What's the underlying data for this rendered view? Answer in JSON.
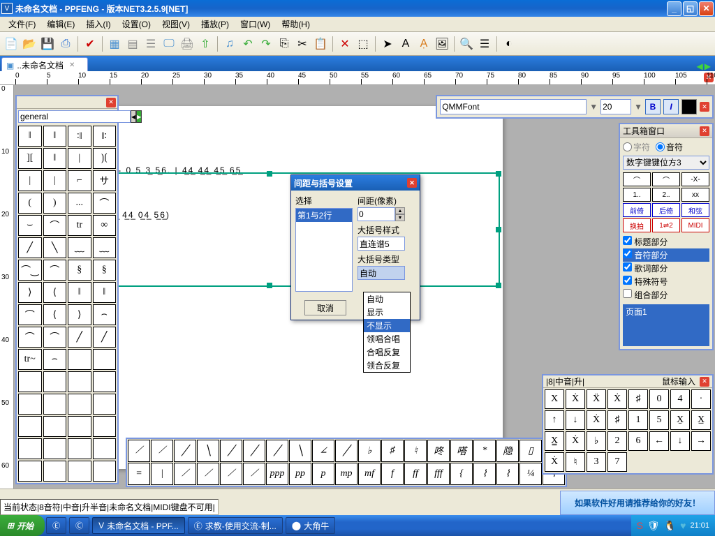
{
  "title": "未命名文档 - PPFENG - 版本NET3.2.5.9[NET]",
  "menus": [
    "文件(F)",
    "编辑(E)",
    "插入(I)",
    "设置(O)",
    "视图(V)",
    "播放(P)",
    "窗口(W)",
    "帮助(H)"
  ],
  "tab": {
    "label": "..未命名文档"
  },
  "ruler": {
    "ticks": [
      0,
      5,
      10,
      15,
      20,
      25,
      30,
      35,
      40,
      45,
      50,
      55,
      60,
      65,
      70,
      75,
      80,
      85,
      90,
      95,
      100,
      105,
      110
    ]
  },
  "vruler": {
    "ticks": [
      0,
      10,
      20,
      30,
      40,
      50,
      60,
      70
    ]
  },
  "palette": {
    "category": "general",
    "cells": [
      "‖",
      "‖",
      "∶‖",
      "‖∶",
      "][",
      "‖",
      "|",
      "⟯⟮",
      "|",
      "|",
      "⌐",
      "サ",
      "(",
      ")",
      "...",
      "⌒",
      "⌣",
      "⌒",
      "tr",
      "∞",
      "╱",
      "╲",
      "﹏",
      "﹏",
      "⌒‿",
      "⌒",
      "§",
      "§",
      "⟩",
      "⟨",
      "‖",
      "‖",
      "⌒",
      "⟨",
      "⟩",
      "⌢",
      "⌒",
      "⌒",
      "╱",
      "╱",
      "tr~",
      "⌢",
      "",
      "",
      "",
      "",
      "",
      "",
      "",
      "",
      "",
      "",
      "",
      "",
      "",
      "",
      "",
      "",
      "",
      "",
      "",
      "",
      "",
      ""
    ]
  },
  "font": {
    "name": "QMMFont",
    "size": "20"
  },
  "toolbox": {
    "title": "工具箱窗口",
    "radios": [
      "字符",
      "音符"
    ],
    "combo": "数字键键位方3",
    "row1": [
      "⌒",
      "⌒",
      "-X-"
    ],
    "row2": [
      "1..",
      "2..",
      "xx"
    ],
    "row3": [
      "前倚",
      "后倚",
      "和弦"
    ],
    "row4": [
      "换拍",
      "1⇌2",
      "MIDI"
    ],
    "checks": [
      "标题部分",
      "音符部分",
      "歌词部分",
      "特殊符号",
      "组合部分"
    ],
    "checked": [
      true,
      true,
      true,
      true,
      false
    ],
    "selected_idx": 1,
    "page": "页面1"
  },
  "dialog": {
    "title": "间距与括号设置",
    "select_label": "选择",
    "list_items": [
      "第1与2行"
    ],
    "spacing_label": "间距(像素)",
    "spacing_value": "0",
    "style_label": "大括号样式",
    "style_value": "直连谱5",
    "type_label": "大括号类型",
    "type_value": "自动",
    "cancel": "取消",
    "apply": "应用",
    "dropdown": [
      "自动",
      "显示",
      "不显示",
      "领唱合唱",
      "合唱反复",
      "领合反复"
    ],
    "dropdown_sel": 2
  },
  "mouse": {
    "status": "|8|中音|升|",
    "title": "鼠标输入",
    "cells": [
      "X",
      "Ẋ",
      "Ẍ",
      "Ẋ",
      "♯",
      "0",
      "4",
      "·",
      "↑",
      "↓",
      "Ẋ",
      "♯",
      "1",
      "5",
      "X̱",
      "X̲",
      "X̳",
      "Ẋ",
      "♭",
      "2",
      "6",
      "←",
      "↓",
      "→",
      "Ẋ",
      "♮",
      "3",
      "7"
    ]
  },
  "symbols": [
    "⟋",
    "⟋",
    "╱",
    "╲",
    "╱",
    "╱",
    "╱",
    "╲",
    "∠",
    "╱",
    "♭",
    "♯",
    "♮",
    "咚",
    "嗒",
    "*",
    "隐",
    "▯",
    "亖",
    "=",
    "|",
    "⟋",
    "⟋",
    "⟋",
    "⟋",
    "ppp",
    "pp",
    "p",
    "mp",
    "mf",
    "f",
    "ff",
    "fff",
    "{",
    "⌇",
    "⌇",
    "¼",
    "⌇"
  ],
  "music": {
    "line1": "3̲2. 5 2̲1 | 1 - 0             5  3̲ 5̲6. | 4̲4̲ 4̲4̲ 4̲5̲ 6̲5̲",
    "line2": "                    5 3̲5̲ 6 - | 4̲4̲ 4̲4̲ 0̲4̲ 5̲6̲)"
  },
  "status": "当前状态|8音符|中音|升半音|未命名文档|MIDI键盘不可用|",
  "ad": "如果软件好用请推荐给你的好友！",
  "taskbar": {
    "start": "开始",
    "items": [
      "",
      "",
      "未命名文档 - PPF...",
      "求教-使用交流-制...",
      "大角牛"
    ],
    "time": "21:01"
  }
}
